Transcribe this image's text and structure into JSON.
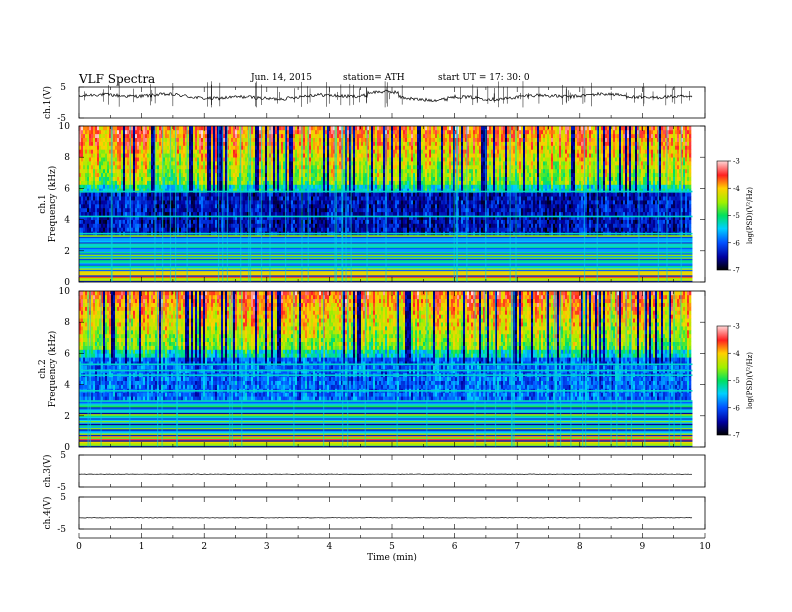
{
  "header": {
    "title": "VLF  Spectra",
    "date": "Jun. 14, 2015",
    "station": "station= ATH",
    "start": "start  UT  =    17: 30: 0"
  },
  "chart_data": [
    {
      "type": "line",
      "panel": "ch1-waveform",
      "ylabel": "ch.1(V)",
      "ylim": [
        -5,
        5
      ],
      "yticks": [
        "5",
        "-5"
      ],
      "baseline_v": 1.9
    },
    {
      "type": "heatmap",
      "panel": "ch1-spectrogram",
      "ylabel": "ch.1\nFrequency (kHz)",
      "ylim": [
        0,
        10
      ],
      "yticks": [
        "0",
        "2",
        "4",
        "6",
        "8",
        "10"
      ],
      "colorbar": {
        "label": "log(PSD)(V²/Hz)",
        "range": [
          -7,
          -3
        ],
        "ticks": [
          "-3",
          "-4",
          "-5",
          "-6",
          "-7"
        ]
      }
    },
    {
      "type": "heatmap",
      "panel": "ch2-spectrogram",
      "ylabel": "ch.2\nFrequency (kHz)",
      "ylim": [
        0,
        10
      ],
      "yticks": [
        "0",
        "2",
        "4",
        "6",
        "8",
        "10"
      ],
      "colorbar": {
        "label": "log(PSD)(V²/Hz)",
        "range": [
          -7,
          -3
        ],
        "ticks": [
          "-3",
          "-4",
          "-5",
          "-6",
          "-7"
        ]
      }
    },
    {
      "type": "line",
      "panel": "ch3-waveform",
      "ylabel": "ch.3(V)",
      "ylim": [
        -5,
        5
      ],
      "yticks": [
        "5",
        "-5"
      ],
      "baseline_v": -1.0
    },
    {
      "type": "line",
      "panel": "ch4-waveform",
      "ylabel": "ch.4(V)",
      "ylim": [
        -5,
        5
      ],
      "yticks": [
        "5",
        "-5"
      ],
      "baseline_v": -1.5
    }
  ],
  "x_axis": {
    "label": "Time  (min)",
    "xlim": [
      0,
      10
    ],
    "ticks": [
      "0",
      "1",
      "2",
      "3",
      "4",
      "5",
      "6",
      "7",
      "8",
      "9",
      "10"
    ],
    "data_end_min": 9.8
  }
}
